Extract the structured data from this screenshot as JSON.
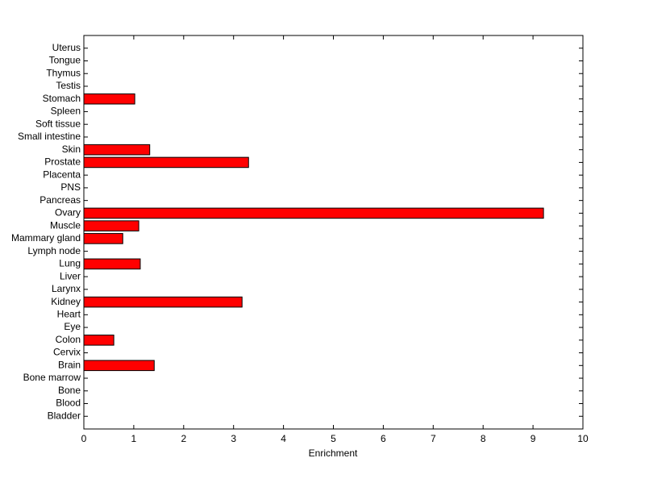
{
  "chart_data": {
    "type": "barh",
    "xlabel": "Enrichment",
    "categories": [
      "Bladder",
      "Blood",
      "Bone",
      "Bone marrow",
      "Brain",
      "Cervix",
      "Colon",
      "Eye",
      "Heart",
      "Kidney",
      "Larynx",
      "Liver",
      "Lung",
      "Lymph node",
      "Mammary gland",
      "Muscle",
      "Ovary",
      "Pancreas",
      "PNS",
      "Placenta",
      "Prostate",
      "Skin",
      "Small intestine",
      "Soft tissue",
      "Spleen",
      "Stomach",
      "Testis",
      "Thymus",
      "Tongue",
      "Uterus"
    ],
    "values": [
      0,
      0,
      0,
      0,
      1.41,
      0,
      0.6,
      0,
      0,
      3.17,
      0,
      0,
      1.13,
      0,
      0.78,
      1.1,
      9.21,
      0,
      0,
      0,
      3.3,
      1.32,
      0,
      0,
      0,
      1.02,
      0,
      0,
      0,
      0
    ],
    "color": "#ff0000",
    "xlim": [
      0,
      10
    ],
    "xticks": [
      0,
      1,
      2,
      3,
      4,
      5,
      6,
      7,
      8,
      9,
      10
    ],
    "grid": false
  }
}
